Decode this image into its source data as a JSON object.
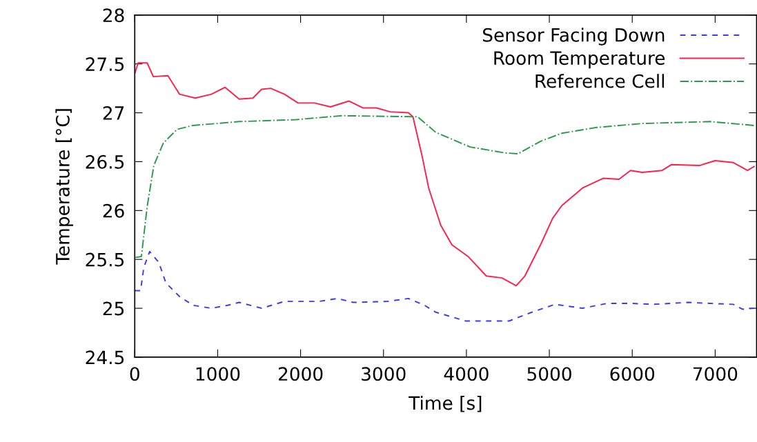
{
  "chart_data": {
    "type": "line",
    "xlabel": "Time [s]",
    "ylabel": "Temperature [°C]",
    "xlim": [
      0,
      7500
    ],
    "xticks": [
      0,
      1000,
      2000,
      3000,
      4000,
      5000,
      6000,
      7000
    ],
    "ylim": [
      24.5,
      28
    ],
    "yticks": [
      24.5,
      25,
      25.5,
      26,
      26.5,
      27,
      27.5,
      28
    ],
    "grid": false,
    "legend": "top right",
    "series": [
      {
        "name": "Sensor Facing Down",
        "color": "#3a3af0",
        "line_style": "dashed",
        "x": [
          0,
          70,
          110,
          180,
          290,
          375,
          540,
          705,
          925,
          1120,
          1260,
          1530,
          1805,
          2220,
          2445,
          2635,
          3050,
          3300,
          3495,
          3630,
          3990,
          4265,
          4515,
          4790,
          5070,
          5400,
          5700,
          5980,
          6255,
          6670,
          6940,
          7220,
          7330,
          7470
        ],
        "values": [
          25.18,
          25.18,
          25.42,
          25.58,
          25.47,
          25.26,
          25.12,
          25.03,
          25.0,
          25.03,
          25.06,
          25.0,
          25.07,
          25.07,
          25.1,
          25.06,
          25.07,
          25.1,
          25.03,
          24.96,
          24.87,
          24.87,
          24.87,
          24.96,
          25.04,
          25.0,
          25.05,
          25.05,
          25.04,
          25.06,
          25.05,
          25.04,
          24.99,
          25.0
        ]
      },
      {
        "name": "Room Temperature",
        "color": "#ff1f4b",
        "line_style": "solid",
        "x": [
          0,
          41,
          150,
          224,
          400,
          540,
          730,
          925,
          1090,
          1260,
          1425,
          1530,
          1640,
          1805,
          1970,
          2170,
          2360,
          2585,
          2750,
          2915,
          3080,
          3300,
          3355,
          3465,
          3545,
          3690,
          3825,
          4020,
          4240,
          4430,
          4600,
          4705,
          4900,
          5040,
          5150,
          5400,
          5650,
          5840,
          5980,
          6120,
          6360,
          6475,
          6810,
          7000,
          7220,
          7390,
          7470
        ],
        "values": [
          27.4,
          27.51,
          27.51,
          27.37,
          27.38,
          27.19,
          27.15,
          27.19,
          27.26,
          27.14,
          27.15,
          27.24,
          27.25,
          27.19,
          27.1,
          27.1,
          27.06,
          27.12,
          27.05,
          27.05,
          27.01,
          27.0,
          26.96,
          26.56,
          26.23,
          25.85,
          25.65,
          25.53,
          25.33,
          25.31,
          25.23,
          25.33,
          25.66,
          25.92,
          26.05,
          26.23,
          26.33,
          26.32,
          26.41,
          26.39,
          26.41,
          26.47,
          26.46,
          26.51,
          26.49,
          26.41,
          26.45
        ]
      },
      {
        "name": "Reference Cell",
        "color": "#2a9a4a",
        "line_style": "dashdot",
        "x": [
          10,
          80,
          150,
          230,
          345,
          510,
          700,
          1260,
          1950,
          2500,
          3330,
          3410,
          3630,
          4045,
          4460,
          4620,
          4900,
          5150,
          5570,
          6120,
          6940,
          7470
        ],
        "values": [
          25.52,
          25.53,
          26.04,
          26.46,
          26.69,
          26.83,
          26.87,
          26.91,
          26.93,
          26.97,
          26.96,
          26.96,
          26.8,
          26.65,
          26.59,
          26.58,
          26.71,
          26.79,
          26.85,
          26.89,
          26.91,
          26.87
        ]
      }
    ]
  }
}
